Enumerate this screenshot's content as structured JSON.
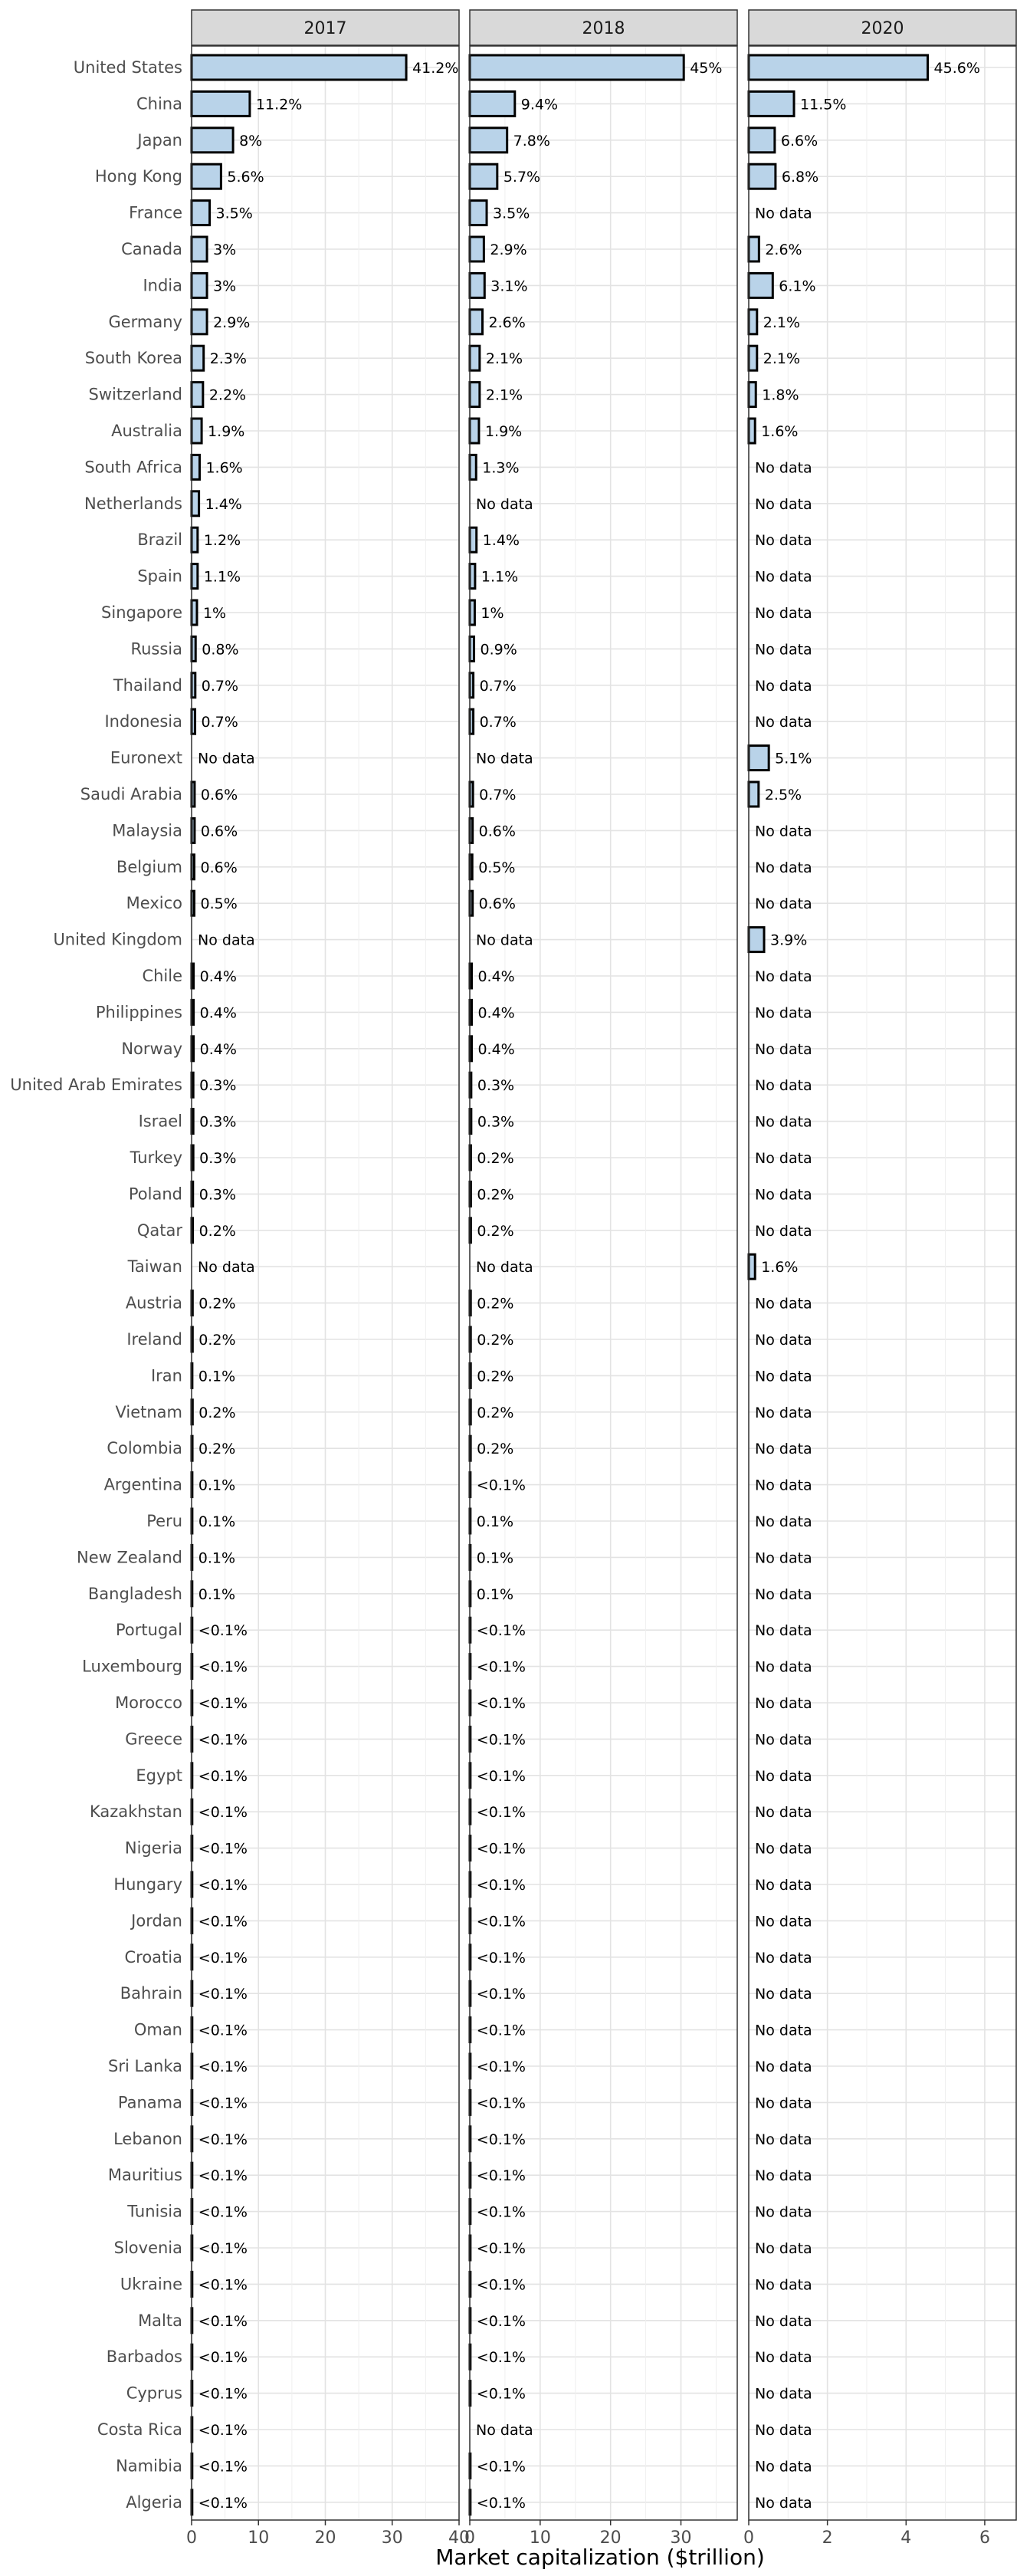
{
  "chart_data": {
    "type": "bar",
    "orientation": "horizontal",
    "xlabel": "Market capitalization ($trillion)",
    "ylabel": "",
    "title": "",
    "legend": "none",
    "grid": true,
    "categories": [
      "United States",
      "China",
      "Japan",
      "Hong Kong",
      "France",
      "Canada",
      "India",
      "Germany",
      "South Korea",
      "Switzerland",
      "Australia",
      "South Africa",
      "Netherlands",
      "Brazil",
      "Spain",
      "Singapore",
      "Russia",
      "Thailand",
      "Indonesia",
      "Euronext",
      "Saudi Arabia",
      "Malaysia",
      "Belgium",
      "Mexico",
      "United Kingdom",
      "Chile",
      "Philippines",
      "Norway",
      "United Arab Emirates",
      "Israel",
      "Turkey",
      "Poland",
      "Qatar",
      "Taiwan",
      "Austria",
      "Ireland",
      "Iran",
      "Vietnam",
      "Colombia",
      "Argentina",
      "Peru",
      "New Zealand",
      "Bangladesh",
      "Portugal",
      "Luxembourg",
      "Morocco",
      "Greece",
      "Egypt",
      "Kazakhstan",
      "Nigeria",
      "Hungary",
      "Jordan",
      "Croatia",
      "Bahrain",
      "Oman",
      "Sri Lanka",
      "Panama",
      "Lebanon",
      "Mauritius",
      "Tunisia",
      "Slovenia",
      "Ukraine",
      "Malta",
      "Barbados",
      "Cyprus",
      "Costa Rica",
      "Namibia",
      "Algeria"
    ],
    "panels": [
      {
        "name": "2017",
        "xlim": [
          0,
          40
        ],
        "xticks": [
          0,
          10,
          20,
          30,
          40
        ],
        "values": [
          32.1,
          8.7,
          6.2,
          4.4,
          2.7,
          2.3,
          2.3,
          2.3,
          1.8,
          1.7,
          1.5,
          1.2,
          1.1,
          0.9,
          0.9,
          0.8,
          0.6,
          0.55,
          0.52,
          null,
          0.45,
          0.45,
          0.4,
          0.4,
          null,
          0.3,
          0.3,
          0.3,
          0.25,
          0.25,
          0.25,
          0.2,
          0.18,
          null,
          0.15,
          0.15,
          0.1,
          0.15,
          0.12,
          0.1,
          0.1,
          0.09,
          0.08,
          0.07,
          0.07,
          0.06,
          0.06,
          0.05,
          0.05,
          0.05,
          0.03,
          0.03,
          0.03,
          0.03,
          0.03,
          0.02,
          0.02,
          0.02,
          0.02,
          0.02,
          0.02,
          0.01,
          0.01,
          0.01,
          0.01,
          0.01,
          0.01,
          0.01
        ],
        "labels": [
          "41.2%",
          "11.2%",
          "8%",
          "5.6%",
          "3.5%",
          "3%",
          "3%",
          "2.9%",
          "2.3%",
          "2.2%",
          "1.9%",
          "1.6%",
          "1.4%",
          "1.2%",
          "1.1%",
          "1%",
          "0.8%",
          "0.7%",
          "0.7%",
          "No data",
          "0.6%",
          "0.6%",
          "0.6%",
          "0.5%",
          "No data",
          "0.4%",
          "0.4%",
          "0.4%",
          "0.3%",
          "0.3%",
          "0.3%",
          "0.3%",
          "0.2%",
          "No data",
          "0.2%",
          "0.2%",
          "0.1%",
          "0.2%",
          "0.2%",
          "0.1%",
          "0.1%",
          "0.1%",
          "0.1%",
          "<0.1%",
          "<0.1%",
          "<0.1%",
          "<0.1%",
          "<0.1%",
          "<0.1%",
          "<0.1%",
          "<0.1%",
          "<0.1%",
          "<0.1%",
          "<0.1%",
          "<0.1%",
          "<0.1%",
          "<0.1%",
          "<0.1%",
          "<0.1%",
          "<0.1%",
          "<0.1%",
          "<0.1%",
          "<0.1%",
          "<0.1%",
          "<0.1%",
          "<0.1%",
          "<0.1%",
          "<0.1%"
        ]
      },
      {
        "name": "2018",
        "xlim": [
          0,
          38
        ],
        "xticks": [
          0,
          10,
          20,
          30
        ],
        "values": [
          30.4,
          6.4,
          5.3,
          3.9,
          2.4,
          2.0,
          2.1,
          1.8,
          1.4,
          1.4,
          1.3,
          0.9,
          null,
          0.95,
          0.75,
          0.7,
          0.6,
          0.5,
          0.5,
          null,
          0.45,
          0.4,
          0.35,
          0.4,
          null,
          0.27,
          0.27,
          0.27,
          0.2,
          0.2,
          0.15,
          0.15,
          0.15,
          null,
          0.13,
          0.13,
          0.13,
          0.13,
          0.12,
          0.05,
          0.08,
          0.08,
          0.07,
          0.05,
          0.05,
          0.05,
          0.05,
          0.05,
          0.04,
          0.04,
          0.03,
          0.03,
          0.03,
          0.03,
          0.03,
          0.02,
          0.02,
          0.02,
          0.02,
          0.02,
          0.02,
          0.01,
          0.01,
          0.01,
          0.01,
          null,
          0.01,
          0.01
        ],
        "labels": [
          "45%",
          "9.4%",
          "7.8%",
          "5.7%",
          "3.5%",
          "2.9%",
          "3.1%",
          "2.6%",
          "2.1%",
          "2.1%",
          "1.9%",
          "1.3%",
          "No data",
          "1.4%",
          "1.1%",
          "1%",
          "0.9%",
          "0.7%",
          "0.7%",
          "No data",
          "0.7%",
          "0.6%",
          "0.5%",
          "0.6%",
          "No data",
          "0.4%",
          "0.4%",
          "0.4%",
          "0.3%",
          "0.3%",
          "0.2%",
          "0.2%",
          "0.2%",
          "No data",
          "0.2%",
          "0.2%",
          "0.2%",
          "0.2%",
          "0.2%",
          "<0.1%",
          "0.1%",
          "0.1%",
          "0.1%",
          "<0.1%",
          "<0.1%",
          "<0.1%",
          "<0.1%",
          "<0.1%",
          "<0.1%",
          "<0.1%",
          "<0.1%",
          "<0.1%",
          "<0.1%",
          "<0.1%",
          "<0.1%",
          "<0.1%",
          "<0.1%",
          "<0.1%",
          "<0.1%",
          "<0.1%",
          "<0.1%",
          "<0.1%",
          "<0.1%",
          "<0.1%",
          "<0.1%",
          "No data",
          "<0.1%",
          "<0.1%"
        ]
      },
      {
        "name": "2020",
        "xlim": [
          0,
          6.8
        ],
        "xticks": [
          0,
          2,
          4,
          6
        ],
        "values": [
          4.55,
          1.15,
          0.66,
          0.68,
          null,
          0.26,
          0.61,
          0.21,
          0.21,
          0.18,
          0.16,
          null,
          null,
          null,
          null,
          null,
          null,
          null,
          null,
          0.51,
          0.25,
          null,
          null,
          null,
          0.39,
          null,
          null,
          null,
          null,
          null,
          null,
          null,
          null,
          0.16,
          null,
          null,
          null,
          null,
          null,
          null,
          null,
          null,
          null,
          null,
          null,
          null,
          null,
          null,
          null,
          null,
          null,
          null,
          null,
          null,
          null,
          null,
          null,
          null,
          null,
          null,
          null,
          null,
          null,
          null,
          null,
          null,
          null,
          null
        ],
        "labels": [
          "45.6%",
          "11.5%",
          "6.6%",
          "6.8%",
          "No data",
          "2.6%",
          "6.1%",
          "2.1%",
          "2.1%",
          "1.8%",
          "1.6%",
          "No data",
          "No data",
          "No data",
          "No data",
          "No data",
          "No data",
          "No data",
          "No data",
          "5.1%",
          "2.5%",
          "No data",
          "No data",
          "No data",
          "3.9%",
          "No data",
          "No data",
          "No data",
          "No data",
          "No data",
          "No data",
          "No data",
          "No data",
          "1.6%",
          "No data",
          "No data",
          "No data",
          "No data",
          "No data",
          "No data",
          "No data",
          "No data",
          "No data",
          "No data",
          "No data",
          "No data",
          "No data",
          "No data",
          "No data",
          "No data",
          "No data",
          "No data",
          "No data",
          "No data",
          "No data",
          "No data",
          "No data",
          "No data",
          "No data",
          "No data",
          "No data",
          "No data",
          "No data",
          "No data",
          "No data",
          "No data",
          "No data",
          "No data"
        ]
      }
    ]
  }
}
